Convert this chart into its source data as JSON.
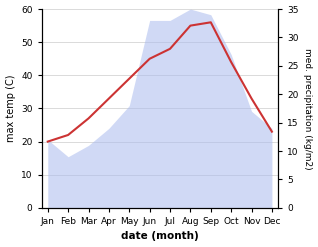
{
  "months": [
    "Jan",
    "Feb",
    "Mar",
    "Apr",
    "May",
    "Jun",
    "Jul",
    "Aug",
    "Sep",
    "Oct",
    "Nov",
    "Dec"
  ],
  "temp_max": [
    20,
    22,
    27,
    33,
    39,
    45,
    48,
    55,
    56,
    44,
    33,
    23
  ],
  "precipitation": [
    12,
    9,
    11,
    14,
    18,
    33,
    33,
    35,
    34,
    27,
    17,
    14
  ],
  "temp_color": "#cc3333",
  "precip_color": "#aabbee",
  "precip_fill_alpha": 0.55,
  "temp_ylim": [
    0,
    60
  ],
  "precip_ylim": [
    0,
    35
  ],
  "xlabel": "date (month)",
  "ylabel_left": "max temp (C)",
  "ylabel_right": "med. precipitation (kg/m2)",
  "bg_color": "#ffffff",
  "grid_color": "#cccccc",
  "label_fontsize": 7,
  "tick_fontsize": 6.5
}
